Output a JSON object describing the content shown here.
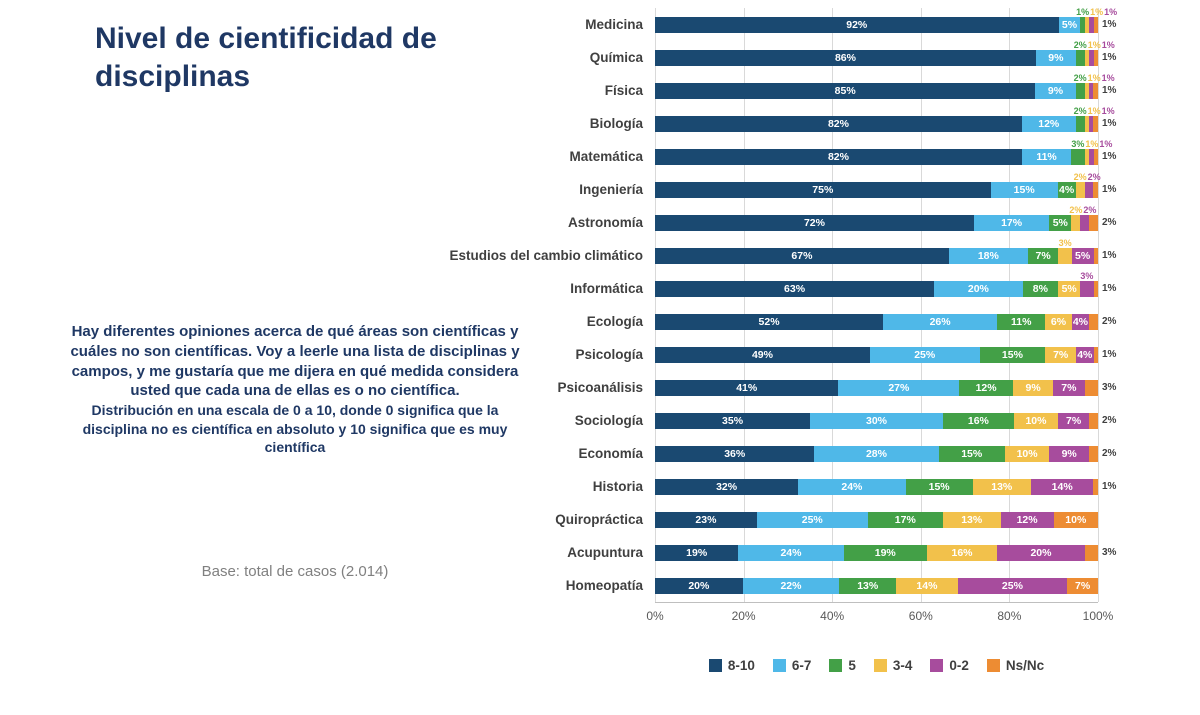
{
  "left_panel": {
    "question": "Hay diferentes opiniones acerca de qué áreas son científicas y cuáles no son científicas. Voy a leerle una lista de disciplinas y campos, y me gustaría que me dijera en qué medida considera usted que cada una de ellas es o no científica.",
    "scale_note": "Distribución en una escala de 0 a 10, donde 0 significa que la disciplina no es científica en absoluto y 10 significa que es muy científica",
    "base_label": "Base: total de casos  (2.014)"
  },
  "chart_data": {
    "type": "bar",
    "orientation": "horizontal",
    "stacked": true,
    "title": "Nivel de cientificidad de disciplinas",
    "xlabel": "",
    "ylabel": "",
    "xlim": [
      0,
      100
    ],
    "grid": true,
    "legend_position": "bottom",
    "value_suffix": "%",
    "x_ticks": [
      "0%",
      "20%",
      "40%",
      "60%",
      "80%",
      "100%"
    ],
    "categories": [
      "Medicina",
      "Química",
      "Física",
      "Biología",
      "Matemática",
      "Ingeniería",
      "Astronomía",
      "Estudios del cambio climático",
      "Informática",
      "Ecología",
      "Psicología",
      "Psicoanálisis",
      "Sociología",
      "Economía",
      "Historia",
      "Quiropráctica",
      "Acupuntura",
      "Homeopatía"
    ],
    "series": [
      {
        "name": "8-10",
        "color": "#1A4971",
        "values": [
          92,
          86,
          85,
          82,
          82,
          75,
          72,
          67,
          63,
          52,
          49,
          41,
          35,
          36,
          32,
          23,
          19,
          20
        ]
      },
      {
        "name": "6-7",
        "color": "#4FB8E8",
        "values": [
          5,
          9,
          9,
          12,
          11,
          15,
          17,
          18,
          20,
          26,
          25,
          27,
          30,
          28,
          24,
          25,
          24,
          22
        ]
      },
      {
        "name": "5",
        "color": "#43A047",
        "values": [
          1,
          2,
          2,
          2,
          3,
          4,
          5,
          7,
          8,
          11,
          15,
          12,
          16,
          15,
          15,
          17,
          19,
          13
        ]
      },
      {
        "name": "3-4",
        "color": "#F2C14B",
        "values": [
          1,
          1,
          1,
          1,
          1,
          2,
          2,
          3,
          5,
          6,
          7,
          9,
          10,
          10,
          13,
          13,
          16,
          14
        ]
      },
      {
        "name": "0-2",
        "color": "#A74C9D",
        "values": [
          1,
          1,
          1,
          1,
          1,
          2,
          2,
          5,
          3,
          4,
          4,
          7,
          7,
          9,
          14,
          12,
          20,
          25
        ]
      },
      {
        "name": "Ns/Nc",
        "color": "#ED8C33",
        "values": [
          1,
          1,
          1,
          1,
          1,
          1,
          2,
          1,
          1,
          2,
          1,
          3,
          2,
          2,
          1,
          10,
          3,
          7
        ]
      }
    ]
  }
}
